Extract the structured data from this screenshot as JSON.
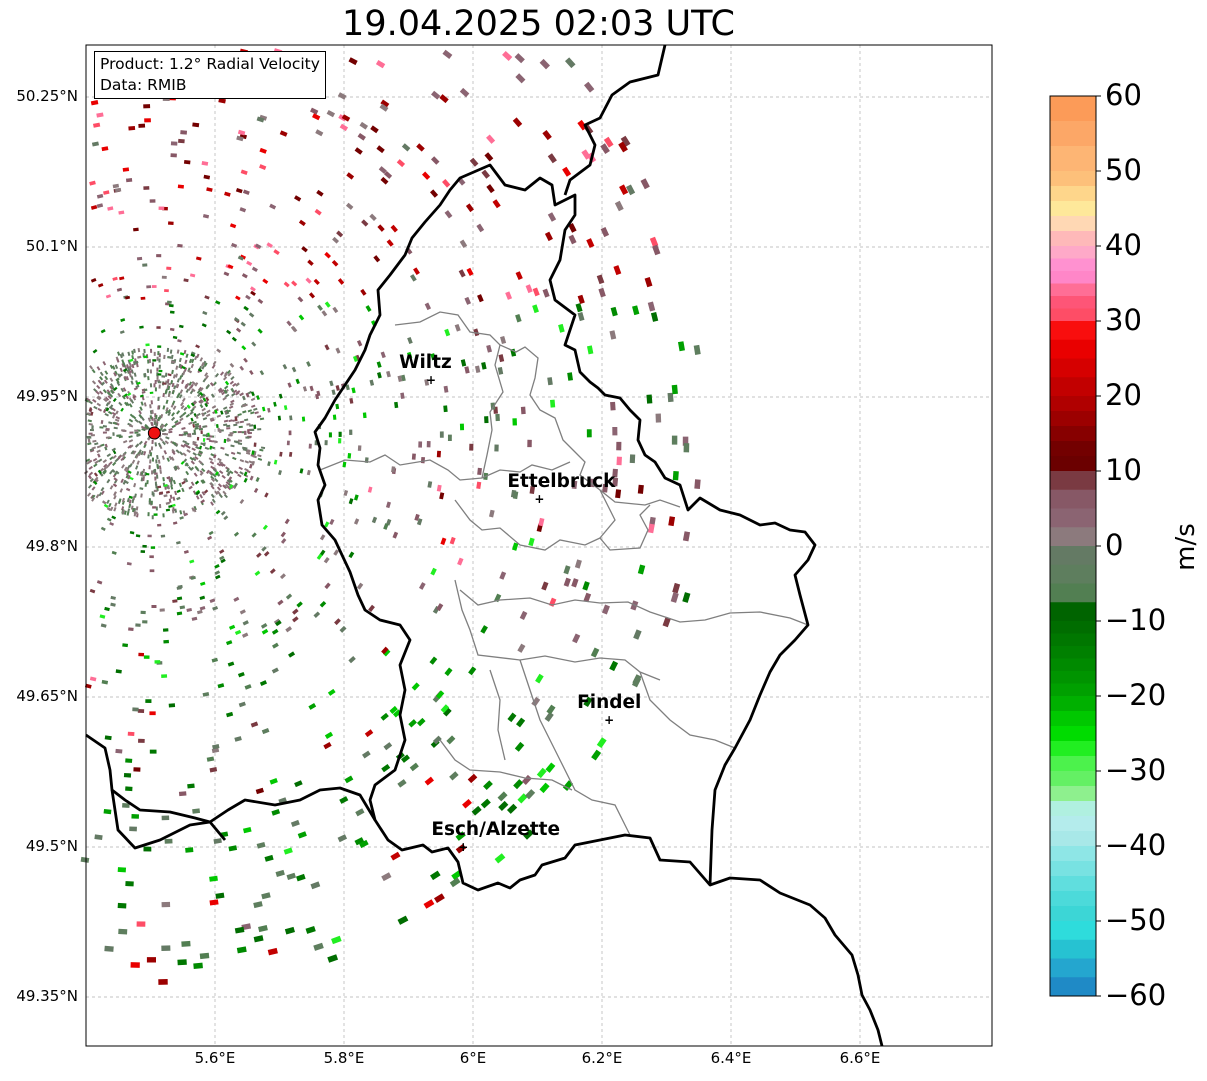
{
  "title": "19.04.2025 02:03 UTC",
  "info_box": {
    "product": "Product: 1.2° Radial Velocity",
    "data_source": "Data: RMIB"
  },
  "map": {
    "lat_ticks": [
      "50.25°N",
      "50.1°N",
      "49.95°N",
      "49.8°N",
      "49.65°N",
      "49.5°N",
      "49.35°N"
    ],
    "lon_ticks": [
      "5.6°E",
      "5.8°E",
      "6°E",
      "6.2°E",
      "6.4°E",
      "6.6°E"
    ],
    "lat_tick_values": [
      50.25,
      50.1,
      49.95,
      49.8,
      49.65,
      49.5,
      49.35
    ],
    "lon_tick_values": [
      5.6,
      5.8,
      6.0,
      6.2,
      6.4,
      6.6
    ],
    "extent": {
      "lon_min": 5.4,
      "lon_max": 6.8,
      "lat_min": 49.3,
      "lat_max": 50.3
    },
    "grid": true,
    "radar_site": {
      "lon": 5.506,
      "lat": 49.914
    },
    "cities": [
      {
        "name": "Wiltz",
        "lon": 5.935,
        "lat": 49.967
      },
      {
        "name": "Ettelbruck",
        "lon": 6.103,
        "lat": 49.848
      },
      {
        "name": "Findel",
        "lon": 6.211,
        "lat": 49.627
      },
      {
        "name": "Esch/Alzette",
        "lon": 5.985,
        "lat": 49.5
      }
    ]
  },
  "colorbar": {
    "label": "m/s",
    "min": -60,
    "max": 60,
    "ticks": [
      "60",
      "50",
      "40",
      "30",
      "20",
      "10",
      "0",
      "−10",
      "−20",
      "−30",
      "−40",
      "−50",
      "−60"
    ],
    "bands": [
      {
        "from": 50,
        "to": 60,
        "colors": [
          "#fc9b58",
          "#fca767",
          "#fdb574"
        ]
      },
      {
        "from": 40,
        "to": 50,
        "colors": [
          "#fdc07a",
          "#fed68b",
          "#fee89a",
          "#ffd8b4",
          "#feb9b9"
        ]
      },
      {
        "from": 30,
        "to": 40,
        "colors": [
          "#fea9c8",
          "#ff91d0",
          "#ff86c8",
          "#ff6e96",
          "#fe5577",
          "#fe4d66"
        ]
      },
      {
        "from": 20,
        "to": 30,
        "colors": [
          "#f90e0e",
          "#e90000",
          "#d60000",
          "#c20000"
        ]
      },
      {
        "from": 10,
        "to": 20,
        "colors": [
          "#b00000",
          "#9c0000",
          "#870000",
          "#730000",
          "#6b0000"
        ]
      },
      {
        "from": 0,
        "to": 10,
        "colors": [
          "#7a3a42",
          "#875866",
          "#8b6472",
          "#8c7a7d"
        ]
      },
      {
        "from": -10,
        "to": 0,
        "colors": [
          "#647a64",
          "#5e7e5e",
          "#527f52",
          "#006400"
        ]
      },
      {
        "from": -20,
        "to": -10,
        "colors": [
          "#006d00",
          "#007700",
          "#008000",
          "#008a00",
          "#009400",
          "#00a000"
        ]
      },
      {
        "from": -30,
        "to": -20,
        "colors": [
          "#00b000",
          "#00c800",
          "#00dc00",
          "#21ee21",
          "#4cf24c"
        ]
      },
      {
        "from": -40,
        "to": -30,
        "colors": [
          "#64f064",
          "#8ef08e",
          "#b0f0e0",
          "#b4ecec",
          "#a8e8e8"
        ]
      },
      {
        "from": -50,
        "to": -40,
        "colors": [
          "#8ee6e6",
          "#78e2e2",
          "#60dede",
          "#4cdada",
          "#3cd6d6"
        ]
      },
      {
        "from": -60,
        "to": -50,
        "colors": [
          "#2edcdc",
          "#26c2d2",
          "#24a6cf",
          "#1f8ac6"
        ]
      }
    ]
  },
  "palette": {
    "border_country": "#000000",
    "border_canton": "#7f7f7f",
    "gridline": "#b0b0b0",
    "radar_dot": "#ee1111",
    "city_marker": "#000000"
  }
}
